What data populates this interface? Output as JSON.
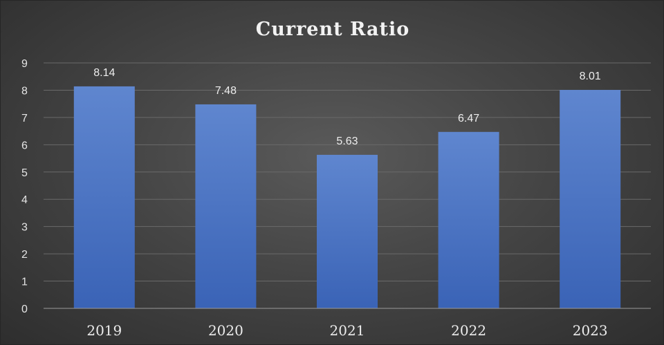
{
  "chart_data": {
    "type": "bar",
    "title": "Current Ratio",
    "categories": [
      "2019",
      "2020",
      "2021",
      "2022",
      "2023"
    ],
    "values": [
      8.14,
      7.48,
      5.63,
      6.47,
      8.01
    ],
    "data_labels": [
      "8.14",
      "7.48",
      "5.63",
      "6.47",
      "8.01"
    ],
    "ylim": [
      0,
      9
    ],
    "yticks": [
      "0",
      "1",
      "2",
      "3",
      "4",
      "5",
      "6",
      "7",
      "8",
      "9"
    ],
    "grid": true,
    "legend": "none",
    "colors": {
      "bar": "#4472c4",
      "bar_top": "#5f86cf",
      "bar_bottom": "#3a63b6",
      "gridline": "#6a6a6a",
      "axis": "#9a9a9a"
    }
  }
}
